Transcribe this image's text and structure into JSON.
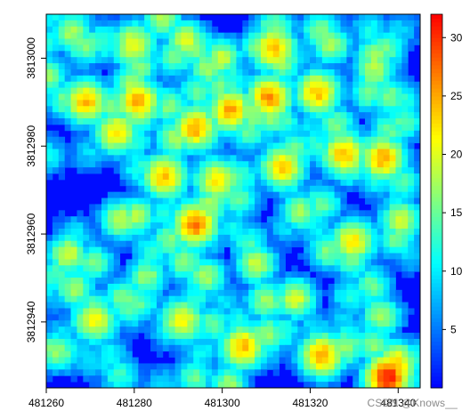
{
  "chart_data": {
    "type": "heatmap",
    "title": "",
    "xlabel": "",
    "ylabel": "",
    "x_ticks": [
      481260,
      481280,
      481300,
      481320,
      481340
    ],
    "y_ticks": [
      3812940,
      3812960,
      3812980,
      3813000
    ],
    "xlim": [
      481260,
      481345
    ],
    "ylim": [
      3812925,
      3813010
    ],
    "colorbar": {
      "ticks": [
        5,
        10,
        15,
        20,
        25,
        30
      ],
      "range": [
        0,
        32
      ],
      "palette": [
        "#0000ff",
        "#0080ff",
        "#00ffff",
        "#80ff80",
        "#ffff00",
        "#ff8000",
        "#ff0000"
      ]
    },
    "hotspots": [
      {
        "x": 481269,
        "y": 3812990,
        "value": 24
      },
      {
        "x": 481281,
        "y": 3812990,
        "value": 25
      },
      {
        "x": 481276,
        "y": 3812983,
        "value": 22
      },
      {
        "x": 481294,
        "y": 3812984,
        "value": 25
      },
      {
        "x": 481302,
        "y": 3812988,
        "value": 25
      },
      {
        "x": 481311,
        "y": 3812991,
        "value": 26
      },
      {
        "x": 481322,
        "y": 3812992,
        "value": 24
      },
      {
        "x": 481312,
        "y": 3813002,
        "value": 24
      },
      {
        "x": 481280,
        "y": 3813003,
        "value": 21
      },
      {
        "x": 481292,
        "y": 3813004,
        "value": 20
      },
      {
        "x": 481287,
        "y": 3812973,
        "value": 24
      },
      {
        "x": 481299,
        "y": 3812972,
        "value": 22
      },
      {
        "x": 481314,
        "y": 3812975,
        "value": 23
      },
      {
        "x": 481328,
        "y": 3812978,
        "value": 24
      },
      {
        "x": 481337,
        "y": 3812977,
        "value": 25
      },
      {
        "x": 481294,
        "y": 3812962,
        "value": 27
      },
      {
        "x": 481277,
        "y": 3812963,
        "value": 19
      },
      {
        "x": 481265,
        "y": 3812955,
        "value": 20
      },
      {
        "x": 481308,
        "y": 3812953,
        "value": 19
      },
      {
        "x": 481330,
        "y": 3812958,
        "value": 22
      },
      {
        "x": 481341,
        "y": 3812963,
        "value": 20
      },
      {
        "x": 481271,
        "y": 3812940,
        "value": 21
      },
      {
        "x": 481291,
        "y": 3812940,
        "value": 21
      },
      {
        "x": 481305,
        "y": 3812934,
        "value": 24
      },
      {
        "x": 481323,
        "y": 3812932,
        "value": 25
      },
      {
        "x": 481340,
        "y": 3812930,
        "value": 23
      },
      {
        "x": 481338,
        "y": 3812927,
        "value": 31
      },
      {
        "x": 481262,
        "y": 3812933,
        "value": 17
      },
      {
        "x": 481317,
        "y": 3812945,
        "value": 20
      },
      {
        "x": 481283,
        "y": 3812950,
        "value": 17
      },
      {
        "x": 481300,
        "y": 3813000,
        "value": 19
      },
      {
        "x": 481325,
        "y": 3813003,
        "value": 18
      },
      {
        "x": 481266,
        "y": 3813006,
        "value": 18
      }
    ]
  },
  "watermark": "CSDN @Knows__"
}
